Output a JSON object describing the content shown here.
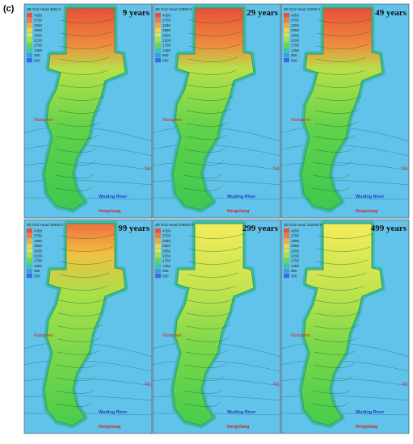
{
  "figure_label": "(c)",
  "legend_values": [
    "4350",
    "3750",
    "3350",
    "2950",
    "2550",
    "2150",
    "1750",
    "1350",
    "950",
    "550"
  ],
  "place_labels": {
    "left": "Wudazhen",
    "right": "Sai",
    "river": "Wuding River",
    "town": "Hengchang"
  },
  "panels": [
    {
      "title": "9 years",
      "legend_title": "3D Grid Head 3650.0"
    },
    {
      "title": "29 years",
      "legend_title": "3D Grid Head 10950.0"
    },
    {
      "title": "49 years",
      "legend_title": "3D Grid Head 18250.0"
    },
    {
      "title": "99 years",
      "legend_title": "3D Grid Head 36500.0"
    },
    {
      "title": "299 years",
      "legend_title": "3D Grid Head 109500.0"
    },
    {
      "title": "499 years",
      "legend_title": "3D Grid Head 182500.0"
    }
  ]
}
